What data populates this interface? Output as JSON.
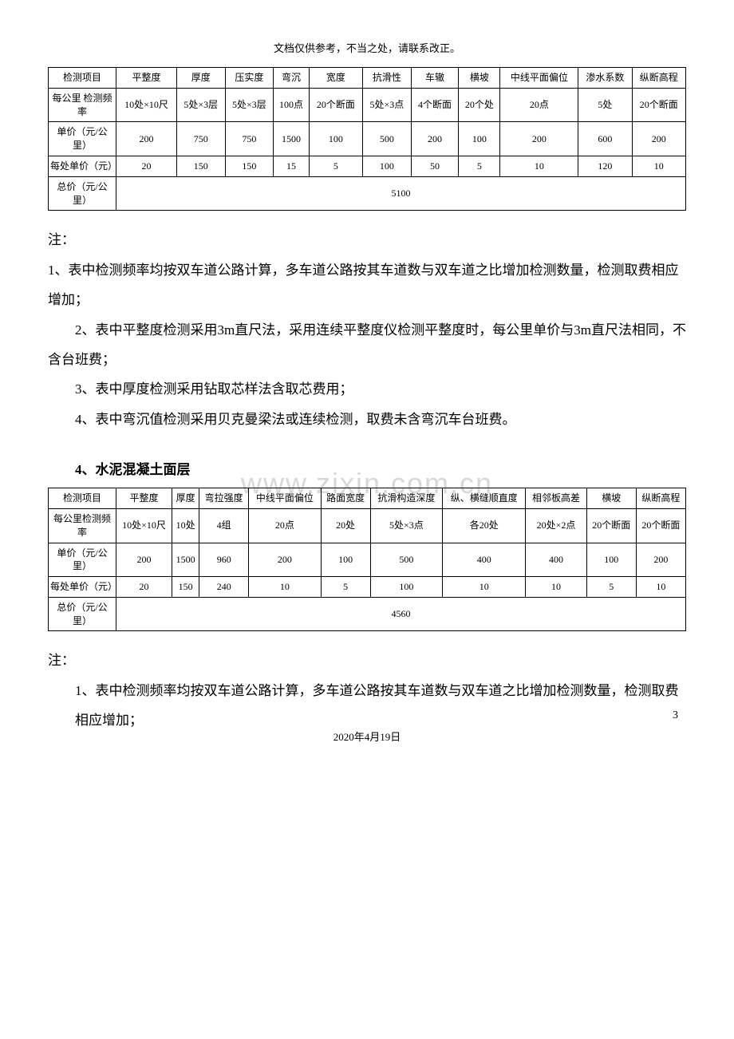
{
  "header_note": "文档仅供参考，不当之处，请联系改正。",
  "watermark_text": "www.zixin.com.cn",
  "table1": {
    "rows_labels": [
      "检测项目",
      "每公里\n检测频率",
      "单价（元/公里）",
      "每处单价（元）",
      "总价（元/公里）"
    ],
    "columns": [
      "平整度",
      "厚度",
      "压实度",
      "弯沉",
      "宽度",
      "抗滑性",
      "车辙",
      "横坡",
      "中线平面偏位",
      "渗水系数",
      "纵断高程"
    ],
    "freq": [
      "10处×10尺",
      "5处×3层",
      "5处×3层",
      "100点",
      "20个断面",
      "5处×3点",
      "4个断面",
      "20个处",
      "20点",
      "5处",
      "20个断面"
    ],
    "unit_price_km": [
      "200",
      "750",
      "750",
      "1500",
      "100",
      "500",
      "200",
      "100",
      "200",
      "600",
      "200"
    ],
    "unit_price_each": [
      "20",
      "150",
      "150",
      "15",
      "5",
      "100",
      "50",
      "5",
      "10",
      "120",
      "10"
    ],
    "total": "5100"
  },
  "notes1": {
    "title": "注：",
    "items": [
      "1、表中检测频率均按双车道公路计算，多车道公路按其车道数与双车道之比增加检测数量，检测取费相应增加；",
      "2、表中平整度检测采用3m直尺法，采用连续平整度仪检测平整度时，每公里单价与3m直尺法相同，不含台班费；",
      "3、表中厚度检测采用钻取芯样法含取芯费用；",
      "4、表中弯沉值检测采用贝克曼梁法或连续检测，取费未含弯沉车台班费。"
    ]
  },
  "section2_title": "4、水泥混凝土面层",
  "table2": {
    "rows_labels": [
      "检测项目",
      "每公里检测频率",
      "单价（元/公里）",
      "每处单价（元）",
      "总价（元/公里）"
    ],
    "columns": [
      "平整度",
      "厚度",
      "弯拉强度",
      "中线平面偏位",
      "路面宽度",
      "抗滑构造深度",
      "纵、横缝顺直度",
      "相邻板高差",
      "横坡",
      "纵断高程"
    ],
    "freq": [
      "10处×10尺",
      "10处",
      "4组",
      "20点",
      "20处",
      "5处×3点",
      "各20处",
      "20处×2点",
      "20个断面",
      "20个断面"
    ],
    "unit_price_km": [
      "200",
      "1500",
      "960",
      "200",
      "100",
      "500",
      "400",
      "400",
      "100",
      "200"
    ],
    "unit_price_each": [
      "20",
      "150",
      "240",
      "10",
      "5",
      "100",
      "10",
      "10",
      "5",
      "10"
    ],
    "total": "4560"
  },
  "notes2": {
    "title": "注：",
    "items": [
      "1、表中检测频率均按双车道公路计算，多车道公路按其车道数与双车道之比增加检测数量，检测取费相应增加；"
    ]
  },
  "page_number": "3",
  "footer_date": "2020年4月19日"
}
